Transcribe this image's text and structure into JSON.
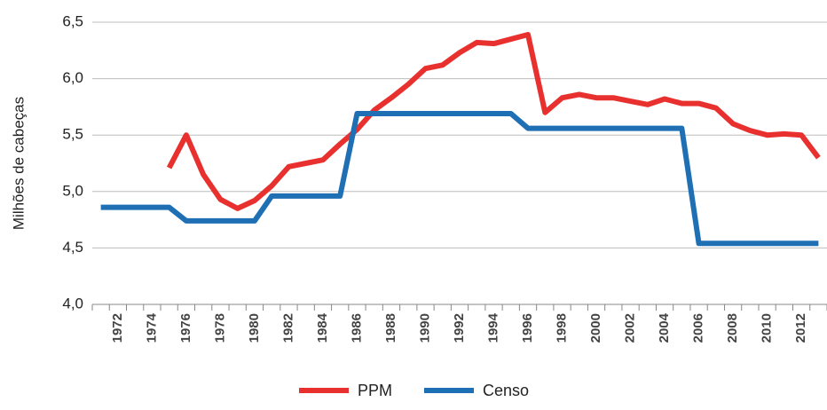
{
  "chart_data": {
    "type": "line",
    "ylabel": "Milhões de cabeças",
    "categories": [
      null,
      "1972",
      null,
      "1974",
      null,
      "1976",
      null,
      "1978",
      null,
      "1980",
      null,
      "1982",
      null,
      "1984",
      null,
      "1986",
      null,
      "1988",
      null,
      "1990",
      null,
      "1992",
      null,
      "1994",
      null,
      "1996",
      null,
      "1998",
      null,
      "2000",
      null,
      "2002",
      null,
      "2004",
      null,
      "2006",
      null,
      "2008",
      null,
      "2010",
      null,
      "2012",
      null
    ],
    "series": [
      {
        "name": "PPM",
        "color": "#e8312f",
        "values": [
          null,
          null,
          null,
          null,
          5.21,
          5.5,
          5.15,
          4.93,
          4.85,
          4.92,
          5.05,
          5.22,
          5.25,
          5.28,
          5.42,
          5.55,
          5.72,
          5.83,
          5.95,
          6.09,
          6.12,
          6.23,
          6.32,
          6.31,
          6.35,
          6.39,
          5.7,
          5.83,
          5.86,
          5.83,
          5.83,
          5.8,
          5.77,
          5.82,
          5.78,
          5.78,
          5.74,
          5.6,
          5.54,
          5.5,
          5.51,
          5.5,
          5.3
        ]
      },
      {
        "name": "Censo",
        "color": "#1f6fb5",
        "values": [
          4.86,
          4.86,
          4.86,
          4.86,
          4.86,
          4.74,
          4.74,
          4.74,
          4.74,
          4.74,
          4.96,
          4.96,
          4.96,
          4.96,
          4.96,
          5.69,
          5.69,
          5.69,
          5.69,
          5.69,
          5.69,
          5.69,
          5.69,
          5.69,
          5.69,
          5.56,
          5.56,
          5.56,
          5.56,
          5.56,
          5.56,
          5.56,
          5.56,
          5.56,
          5.56,
          4.54,
          4.54,
          4.54,
          4.54,
          4.54,
          4.54,
          4.54,
          4.54
        ]
      }
    ],
    "ylim": [
      4.0,
      6.5
    ],
    "yticks": [
      {
        "value": 4.0,
        "label": "4,0"
      },
      {
        "value": 4.5,
        "label": "4,5"
      },
      {
        "value": 5.0,
        "label": "5,0"
      },
      {
        "value": 5.5,
        "label": "5,5"
      },
      {
        "value": 6.0,
        "label": "6,0"
      },
      {
        "value": 6.5,
        "label": "6,5"
      }
    ],
    "grid": true,
    "legend": "bottom"
  }
}
